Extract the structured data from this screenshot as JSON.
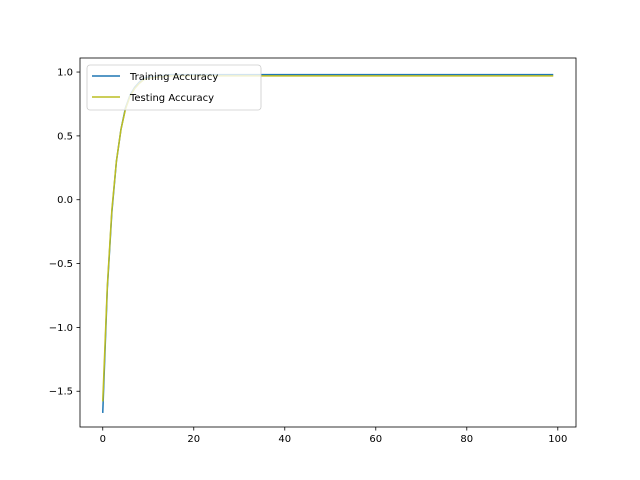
{
  "chart_data": {
    "type": "line",
    "title": "",
    "xlabel": "",
    "ylabel": "",
    "xlim": [
      -5,
      104
    ],
    "ylim": [
      -1.78,
      1.11
    ],
    "x_ticks": [
      0,
      20,
      40,
      60,
      80,
      100
    ],
    "y_ticks": [
      -1.5,
      -1.0,
      -0.5,
      0.0,
      0.5,
      1.0
    ],
    "y_tick_labels": [
      "−1.5",
      "−1.0",
      "−0.5",
      "0.0",
      "0.5",
      "1.0"
    ],
    "grid": false,
    "legend_position": "top-left",
    "series": [
      {
        "name": "Training Accuracy",
        "color": "#1f77b4",
        "x": [
          0,
          1,
          2,
          3,
          4,
          5,
          6,
          7,
          8,
          9,
          10,
          12,
          15,
          20,
          30,
          40,
          50,
          60,
          70,
          80,
          90,
          99
        ],
        "y": [
          -1.67,
          -0.7,
          -0.1,
          0.3,
          0.55,
          0.72,
          0.82,
          0.88,
          0.92,
          0.95,
          0.96,
          0.97,
          0.98,
          0.98,
          0.98,
          0.98,
          0.98,
          0.98,
          0.98,
          0.98,
          0.98,
          0.98
        ]
      },
      {
        "name": "Testing Accuracy",
        "color": "#bcbd22",
        "x": [
          0,
          1,
          2,
          3,
          4,
          5,
          6,
          7,
          8,
          9,
          10,
          12,
          15,
          20,
          30,
          40,
          50,
          60,
          70,
          80,
          90,
          99
        ],
        "y": [
          -1.58,
          -0.68,
          -0.08,
          0.3,
          0.55,
          0.71,
          0.81,
          0.87,
          0.91,
          0.94,
          0.95,
          0.96,
          0.97,
          0.97,
          0.97,
          0.97,
          0.97,
          0.97,
          0.97,
          0.97,
          0.97,
          0.97
        ]
      }
    ]
  }
}
